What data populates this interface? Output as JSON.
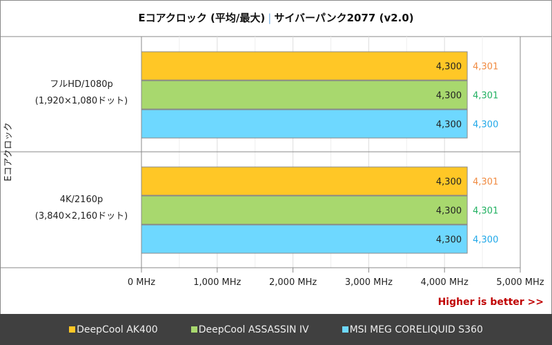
{
  "chart_data": {
    "type": "bar",
    "orientation": "horizontal",
    "title": "Eコアクロック (平均/最大)",
    "subtitle": "サイバーパンク2077 (v2.0)",
    "ylabel": "Eコアクロック",
    "categories": [
      [
        "フルHD/1080p",
        "(1,920×1,080ドット)"
      ],
      [
        "4K/2160p",
        "(3,840×2,160ドット)"
      ]
    ],
    "series": [
      {
        "name": "DeepCool AK400",
        "color": "#ffc726",
        "label_color": "#f08a40",
        "avg": [
          4300,
          4300
        ],
        "max": [
          4301,
          4301
        ]
      },
      {
        "name": "DeepCool ASSASSIN IV",
        "color": "#a8d86e",
        "label_color": "#20b060",
        "avg": [
          4300,
          4300
        ],
        "max": [
          4301,
          4301
        ]
      },
      {
        "name": "MSI MEG CORELIQUID S360",
        "color": "#6ed8ff",
        "label_color": "#20a8e8",
        "avg": [
          4300,
          4300
        ],
        "max": [
          4300,
          4300
        ]
      }
    ],
    "xlim": [
      0,
      5000
    ],
    "xticks": [
      "0 MHz",
      "1,000 MHz",
      "2,000 MHz",
      "3,000 MHz",
      "4,000 MHz",
      "5,000 MHz"
    ],
    "grid": true,
    "legend": "bottom",
    "note": "Higher is better >>"
  }
}
